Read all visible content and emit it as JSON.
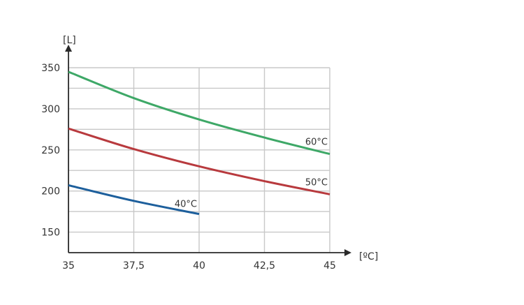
{
  "chart_data": {
    "type": "line",
    "title": "",
    "xlabel": "[ºC]",
    "ylabel": "[L]",
    "xlim": [
      35,
      45
    ],
    "ylim": [
      125,
      350
    ],
    "x_ticks": [
      35,
      37.5,
      40,
      42.5,
      45
    ],
    "x_tick_labels": [
      "35",
      "37,5",
      "40",
      "42,5",
      "45"
    ],
    "y_ticks": [
      150,
      200,
      250,
      300,
      350
    ],
    "y_tick_labels": [
      "150",
      "200",
      "250",
      "300",
      "350"
    ],
    "grid": true,
    "legend": "inline labels at line ends",
    "series": [
      {
        "name": "60°C",
        "color": "#3ea867",
        "x": [
          35,
          37.5,
          40,
          42.5,
          45
        ],
        "values": [
          345,
          313,
          287,
          265,
          245
        ]
      },
      {
        "name": "50°C",
        "color": "#b83a3e",
        "x": [
          35,
          37.5,
          40,
          42.5,
          45
        ],
        "values": [
          276,
          251,
          230,
          212,
          196
        ]
      },
      {
        "name": "40°C",
        "color": "#1d5f9c",
        "x": [
          35,
          37.5,
          40
        ],
        "values": [
          207,
          188,
          172
        ]
      }
    ]
  }
}
